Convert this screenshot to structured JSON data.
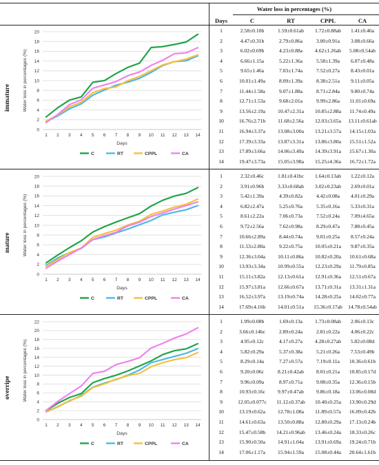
{
  "table_header": {
    "title": "Water loss in percentages (%)",
    "days": "Days",
    "columns": [
      "C",
      "RT",
      "CPPL",
      "CA"
    ]
  },
  "colors": {
    "C": "#1ea34a",
    "RT": "#4db8e8",
    "CPPL": "#f5c038",
    "CA": "#ee82ee"
  },
  "chart_data": [
    {
      "type": "line",
      "panel_label": "immature",
      "x": [
        1,
        2,
        3,
        4,
        5,
        6,
        7,
        8,
        9,
        10,
        11,
        12,
        13,
        14
      ],
      "xlabel": "Days",
      "ylabel": "Water loss in percentages (%)",
      "ylim": [
        0,
        20
      ],
      "yticks": [
        0,
        2,
        4,
        6,
        8,
        10,
        12,
        14,
        16,
        18,
        20
      ],
      "grid": true,
      "legend": "bottom",
      "series": [
        {
          "name": "C",
          "values": [
            2.58,
            4.47,
            6.02,
            6.66,
            9.65,
            10.01,
            11.44,
            12.71,
            13.56,
            16.76,
            16.94,
            17.39,
            17.89,
            19.47
          ]
        },
        {
          "name": "RT",
          "values": [
            1.59,
            2.79,
            4.23,
            5.22,
            7.03,
            8.09,
            9.07,
            9.68,
            10.47,
            11.68,
            13.08,
            13.87,
            14.06,
            15.05
          ]
        },
        {
          "name": "CPPL",
          "values": [
            1.72,
            3.0,
            4.62,
            5.58,
            7.52,
            8.38,
            8.71,
            9.99,
            10.85,
            12.03,
            13.21,
            13.86,
            14.39,
            15.25
          ]
        },
        {
          "name": "CA",
          "values": [
            1.41,
            3.08,
            5.08,
            6.07,
            8.43,
            9.11,
            9.8,
            11.01,
            11.74,
            13.11,
            14.15,
            15.51,
            15.67,
            16.72
          ]
        }
      ],
      "table": [
        [
          "1",
          "2.58±0.10b",
          "1.59±0.61ab",
          "1.72±0.88ab",
          "1.41±0.46a"
        ],
        [
          "2",
          "4.47±0.31b",
          "2.79±0.86a",
          "3.00±0.91a",
          "3.08±0.66a"
        ],
        [
          "3",
          "6.02±0.69b",
          "4.23±0.88a",
          "4.62±1.26ab",
          "5.08±0.54ab"
        ],
        [
          "4",
          "6.66±1.15a",
          "5.22±1.36a",
          "5.58±1.39a",
          "6.07±0.48a"
        ],
        [
          "5",
          "9.65±1.46a",
          "7.03±1.74a",
          "7.52±0.27a",
          "8.43±0.01a"
        ],
        [
          "6",
          "10.01±1.49a",
          "8.09±1.39a",
          "8.38±2.51a",
          "9.11±0.05a"
        ],
        [
          "7",
          "11.44±1.58a",
          "9.07±1.88a",
          "8.71±2.84a",
          "9.80±0.74a"
        ],
        [
          "8",
          "12.71±1.53a",
          "9.68±2.01a",
          "9.99±2.86a",
          "11.01±0.69a"
        ],
        [
          "9",
          "13.56±2.19a",
          "10.47±2.31a",
          "10.85±2.88a",
          "11.74±0.49a"
        ],
        [
          "10",
          "16.76±2.71b",
          "11.68±2.56a",
          "12.03±3.65a",
          "13.11±0.61ab"
        ],
        [
          "11",
          "16.94±3.37a",
          "13.08±3.00a",
          "13.21±3.57a",
          "14.15±1.03a"
        ],
        [
          "12",
          "17.39±3.33a",
          "13.87±3.31a",
          "13.86±3.80a",
          "15.51±1.52a"
        ],
        [
          "13",
          "17.89±3.66a",
          "14.06±3.49a",
          "14.39±3.91a",
          "15.67±1.30a"
        ],
        [
          "14",
          "19.47±3.73a",
          "15.05±3.98a",
          "15.25±4.36a",
          "16.72±1.72a"
        ]
      ]
    },
    {
      "type": "line",
      "panel_label": "mature",
      "x": [
        1,
        2,
        3,
        4,
        5,
        6,
        7,
        8,
        9,
        10,
        11,
        12,
        13,
        14
      ],
      "xlabel": "Days",
      "ylabel": "Water loss in percentages (%)",
      "ylim": [
        0,
        20
      ],
      "yticks": [
        0,
        2,
        4,
        6,
        8,
        10,
        12,
        14,
        16,
        18,
        20
      ],
      "grid": true,
      "legend": "bottom",
      "series": [
        {
          "name": "C",
          "values": [
            2.32,
            3.91,
            5.42,
            6.82,
            8.61,
            9.72,
            10.66,
            11.53,
            12.36,
            13.93,
            15.11,
            15.97,
            16.52,
            17.69
          ]
        },
        {
          "name": "RT",
          "values": [
            1.81,
            3.33,
            4.39,
            5.25,
            7.06,
            7.62,
            8.44,
            9.22,
            10.11,
            10.99,
            12.13,
            12.66,
            13.19,
            14.01
          ]
        },
        {
          "name": "CPPL",
          "values": [
            1.64,
            3.02,
            4.42,
            5.35,
            7.52,
            8.29,
            9.01,
            10.05,
            10.82,
            12.23,
            12.91,
            13.71,
            14.28,
            15.36
          ]
        },
        {
          "name": "CA",
          "values": [
            1.22,
            2.69,
            4.01,
            5.33,
            7.09,
            7.88,
            8.57,
            9.87,
            10.61,
            11.79,
            12.51,
            13.31,
            14.02,
            14.78
          ]
        }
      ],
      "table": [
        [
          "1",
          "2.32±0.46c",
          "1.81±0.41bc",
          "1.64±0.13ab",
          "1.22±0.12a"
        ],
        [
          "2",
          "3.91±0.96b",
          "3.33±0.68ab",
          "3.02±0.23ab",
          "2.69±0.01a"
        ],
        [
          "3",
          "5.42±1.39a",
          "4.39±0.82a",
          "4.42±0.08a",
          "4.01±0.29a"
        ],
        [
          "4",
          "6.82±2.47a",
          "5.25±0.76a",
          "5.35±0.16a",
          "5.33±0.31a"
        ],
        [
          "5",
          "8.61±2.22a",
          "7.06±0.73a",
          "7.52±0.24a",
          "7.09±4.65a"
        ],
        [
          "6",
          "9.72±2.56a",
          "7.62±0.98a",
          "8.29±0.47a",
          "7.88±0.45a"
        ],
        [
          "7",
          "10.66±2.89a",
          "8.44±0.74a",
          "9.01±0.25a",
          "8.57±0.24a"
        ],
        [
          "8",
          "11.53±2.80a",
          "9.22±0.75a",
          "10.05±0.21a",
          "9.87±0.35a"
        ],
        [
          "9",
          "12.36±3.04a",
          "10.11±0.86a",
          "10.82±0.20a",
          "10.61±0.68a"
        ],
        [
          "10",
          "13.93±3.34a",
          "10.99±0.55a",
          "12.23±0.29a",
          "11.79±0.85a"
        ],
        [
          "11",
          "15.11±3.82a",
          "12.13±0.61a",
          "12.91±0.36a",
          "12.51±0.67a"
        ],
        [
          "12",
          "15.97±3.81a",
          "12.66±0.67a",
          "13.71±0.31a",
          "13.31±1.31a"
        ],
        [
          "13",
          "16.52±3.97a",
          "13.19±0.74a",
          "14.28±0.25a",
          "14.02±0.77a"
        ],
        [
          "14",
          "17.69±4.16b",
          "14.01±0.51a",
          "15.36±0.17ab",
          "14.78±0.54ab"
        ]
      ]
    },
    {
      "type": "line",
      "panel_label": "overripe",
      "x": [
        1,
        2,
        3,
        4,
        5,
        6,
        7,
        8,
        9,
        10,
        11,
        12,
        13,
        14
      ],
      "xlabel": "Days",
      "ylabel": "Water loss in percentages (%)",
      "ylim": [
        0,
        22
      ],
      "yticks": [
        0,
        2,
        4,
        6,
        8,
        10,
        12,
        14,
        16,
        18,
        20,
        22
      ],
      "grid": true,
      "legend": "bottom",
      "series": [
        {
          "name": "C",
          "values": [
            1.99,
            3.66,
            4.95,
            5.82,
            8.29,
            9.2,
            9.96,
            10.93,
            12.05,
            13.19,
            14.61,
            15.47,
            15.9,
            17.06
          ]
        },
        {
          "name": "RT",
          "values": [
            1.69,
            2.89,
            4.17,
            5.37,
            7.27,
            8.21,
            8.97,
            9.97,
            11.12,
            12.78,
            13.5,
            14.21,
            14.91,
            15.94
          ]
        },
        {
          "name": "CPPL",
          "values": [
            1.73,
            2.81,
            4.28,
            5.21,
            7.19,
            8.01,
            9.08,
            9.86,
            10.4,
            11.89,
            12.8,
            13.46,
            13.91,
            15.08
          ]
        },
        {
          "name": "CA",
          "values": [
            2.06,
            4.06,
            5.82,
            7.53,
            10.36,
            10.85,
            12.36,
            13.06,
            13.9,
            16.09,
            17.13,
            18.33,
            19.24,
            20.64
          ]
        }
      ],
      "table": [
        [
          "1",
          "1.99±0.08b",
          "1.69±0.13a",
          "1.73±0.08ab",
          "2.06±0.13c"
        ],
        [
          "2",
          "3.66±0.14bc",
          "2.89±0.24a",
          "2.81±0.22a",
          "4.06±0.22c"
        ],
        [
          "3",
          "4.95±0.12c",
          "4.17±0.27a",
          "4.28±0.27ab",
          "5.82±0.08d"
        ],
        [
          "4",
          "5.82±0.29a",
          "5.37±0.38a",
          "5.21±0.26a",
          "7.53±0.49b"
        ],
        [
          "5",
          "8.29±0.14a",
          "7.27±0.57a",
          "7.19±0.11a",
          "10.36±0.61b"
        ],
        [
          "6",
          "9.20±0.06c",
          "8.21±0.42ab",
          "8.01±0.21a",
          "10.85±0.17d"
        ],
        [
          "7",
          "9.96±0.09a",
          "8.97±0.71a",
          "9.08±0.35a",
          "12.36±0.15b"
        ],
        [
          "8",
          "10.93±0.16c",
          "9.97±0.47ab",
          "9.86±0.18a",
          "13.06±0.08d"
        ],
        [
          "9",
          "12.05±0.077c",
          "11.12±0.37ab",
          "10.40±0.25a",
          "13.90±0.29d"
        ],
        [
          "10",
          "13.19±0.62a",
          "12.78±1.08a",
          "11.89±0.57a",
          "16.09±0.42b"
        ],
        [
          "11",
          "14.61±0.63a",
          "13.50±0.88a",
          "12.80±0.29a",
          "17.13±0.24b"
        ],
        [
          "12",
          "15.47±0.58b",
          "14.21±0.96ab",
          "13.46±0.24a",
          "18.33±0.26c"
        ],
        [
          "13",
          "15.90±0.50a",
          "14.91±1.04a",
          "13.91±0.69a",
          "19.24±0.71b"
        ],
        [
          "14",
          "17.06±1.17a",
          "15.94±1.59a",
          "15.08±0.44a",
          "20.64±1.61b"
        ]
      ]
    }
  ]
}
